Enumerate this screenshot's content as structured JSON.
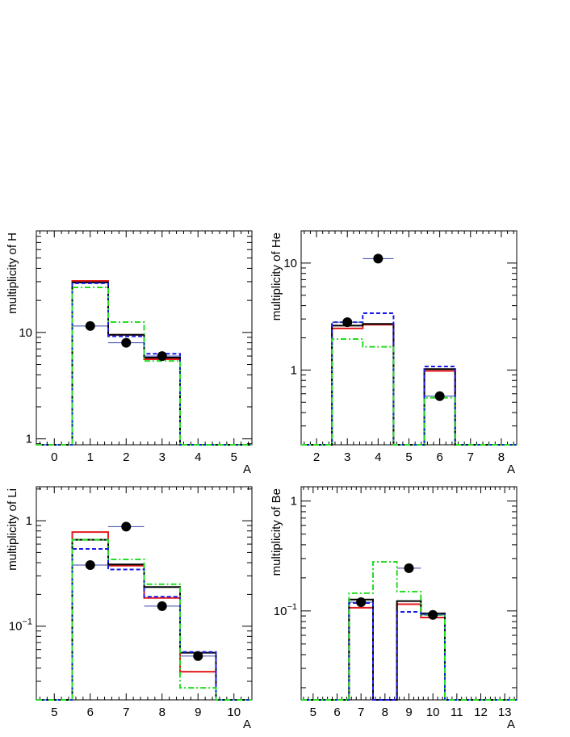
{
  "colors": {
    "black": "#000000",
    "red": "#e41a1c",
    "blue": "#1a1ae6",
    "green": "#22dd22",
    "points": "#000000",
    "errbar": "#3344aa"
  },
  "chart_data": [
    {
      "type": "histogram",
      "panel": "top-left",
      "xlabel": "A",
      "ylabel": "multiplicity of H",
      "log_y": true,
      "xlim": [
        -0.5,
        5.5
      ],
      "ylim": [
        0.88,
        90
      ],
      "xticks": [
        "0",
        "1",
        "2",
        "3",
        "4",
        "5"
      ],
      "yticks": [
        {
          "value": 1,
          "label": "1"
        },
        {
          "value": 10,
          "label": "10"
        }
      ],
      "bins": [
        -0.5,
        0.5,
        1.5,
        2.5,
        3.5,
        4.5,
        5.5
      ],
      "series": [
        {
          "color": "red",
          "style": "solid",
          "values": [
            0,
            30.5,
            9.5,
            5.6,
            0,
            0
          ]
        },
        {
          "color": "black",
          "style": "solid",
          "values": [
            0,
            29.5,
            9.5,
            5.8,
            0,
            0
          ]
        },
        {
          "color": "blue",
          "style": "dashed",
          "values": [
            0,
            29.0,
            9.2,
            6.3,
            0,
            0
          ]
        },
        {
          "color": "green",
          "style": "dashdot",
          "values": [
            0,
            26.5,
            12.5,
            5.4,
            0,
            0
          ]
        }
      ],
      "points": [
        {
          "x": 1,
          "y": 11.5,
          "xerr": 0.5
        },
        {
          "x": 2,
          "y": 8.0,
          "xerr": 0.5
        },
        {
          "x": 3,
          "y": 6.0,
          "xerr": 0.5
        }
      ]
    },
    {
      "type": "histogram",
      "panel": "top-right",
      "xlabel": "A",
      "ylabel": "multiplicity of He",
      "log_y": true,
      "xlim": [
        1.5,
        8.5
      ],
      "ylim": [
        0.2,
        20
      ],
      "xticks": [
        "2",
        "3",
        "4",
        "5",
        "6",
        "7",
        "8"
      ],
      "yticks": [
        {
          "value": 1,
          "label": "1"
        },
        {
          "value": 10,
          "label": "10"
        }
      ],
      "bins": [
        1.5,
        2.5,
        3.5,
        4.5,
        5.5,
        6.5,
        7.5,
        8.5
      ],
      "series": [
        {
          "color": "red",
          "style": "solid",
          "values": [
            0,
            2.45,
            2.65,
            0,
            0.98,
            0,
            0
          ]
        },
        {
          "color": "black",
          "style": "solid",
          "values": [
            0,
            2.6,
            2.7,
            0,
            1.02,
            0,
            0
          ]
        },
        {
          "color": "blue",
          "style": "dashed",
          "values": [
            0,
            2.8,
            3.4,
            0,
            1.08,
            0,
            0
          ]
        },
        {
          "color": "green",
          "style": "dashdot",
          "values": [
            0,
            1.95,
            1.65,
            0,
            0.55,
            0,
            0
          ]
        }
      ],
      "points": [
        {
          "x": 3,
          "y": 2.8,
          "xerr": 0.5
        },
        {
          "x": 4,
          "y": 11.0,
          "xerr": 0.5
        },
        {
          "x": 6,
          "y": 0.57,
          "xerr": 0.5
        }
      ]
    },
    {
      "type": "histogram",
      "panel": "bottom-left",
      "xlabel": "A",
      "ylabel": "multiplicity of Li",
      "log_y": true,
      "xlim": [
        4.5,
        10.5
      ],
      "ylim": [
        0.02,
        2.1
      ],
      "xticks": [
        "5",
        "6",
        "7",
        "8",
        "9",
        "10"
      ],
      "yticks": [
        {
          "value": 0.1,
          "label": "10",
          "sup": "−1"
        },
        {
          "value": 1,
          "label": "1"
        }
      ],
      "bins": [
        4.5,
        5.5,
        6.5,
        7.5,
        8.5,
        9.5,
        10.5
      ],
      "series": [
        {
          "color": "red",
          "style": "solid",
          "values": [
            0,
            0.78,
            0.375,
            0.185,
            0.037,
            0
          ]
        },
        {
          "color": "black",
          "style": "solid",
          "values": [
            0,
            0.66,
            0.385,
            0.235,
            0.056,
            0
          ]
        },
        {
          "color": "blue",
          "style": "dashed",
          "values": [
            0,
            0.54,
            0.345,
            0.19,
            0.057,
            0
          ]
        },
        {
          "color": "green",
          "style": "dashdot",
          "values": [
            0,
            0.66,
            0.43,
            0.25,
            0.026,
            0
          ]
        }
      ],
      "points": [
        {
          "x": 6,
          "y": 0.38,
          "xerr": 0.5
        },
        {
          "x": 7,
          "y": 0.88,
          "xerr": 0.5
        },
        {
          "x": 8,
          "y": 0.155,
          "xerr": 0.5
        },
        {
          "x": 9,
          "y": 0.052,
          "xerr": 0.5
        }
      ]
    },
    {
      "type": "histogram",
      "panel": "bottom-right",
      "xlabel": "A",
      "ylabel": "multiplicity of Be",
      "log_y": true,
      "xlim": [
        4.5,
        13.5
      ],
      "ylim": [
        0.0155,
        1.35
      ],
      "xticks": [
        "5",
        "6",
        "7",
        "8",
        "9",
        "10",
        "11",
        "12",
        "13"
      ],
      "yticks": [
        {
          "value": 0.1,
          "label": "10",
          "sup": "−1"
        },
        {
          "value": 1,
          "label": "1"
        }
      ],
      "bins": [
        4.5,
        5.5,
        6.5,
        7.5,
        8.5,
        9.5,
        10.5,
        11.5,
        12.5,
        13.5
      ],
      "series": [
        {
          "color": "red",
          "style": "solid",
          "values": [
            0,
            0,
            0.107,
            0,
            0.115,
            0.087,
            0,
            0,
            0
          ]
        },
        {
          "color": "black",
          "style": "solid",
          "values": [
            0,
            0,
            0.127,
            0,
            0.123,
            0.095,
            0,
            0,
            0
          ]
        },
        {
          "color": "blue",
          "style": "dashed",
          "values": [
            0,
            0,
            0.118,
            0,
            0.098,
            0.093,
            0,
            0,
            0
          ]
        },
        {
          "color": "green",
          "style": "dashdot",
          "values": [
            0,
            0,
            0.145,
            0.28,
            0.15,
            0.092,
            0,
            0,
            0
          ]
        }
      ],
      "points": [
        {
          "x": 7,
          "y": 0.12,
          "xerr": 0.5
        },
        {
          "x": 9,
          "y": 0.245,
          "xerr": 0.5
        },
        {
          "x": 10,
          "y": 0.092,
          "xerr": 0.5
        }
      ]
    }
  ]
}
